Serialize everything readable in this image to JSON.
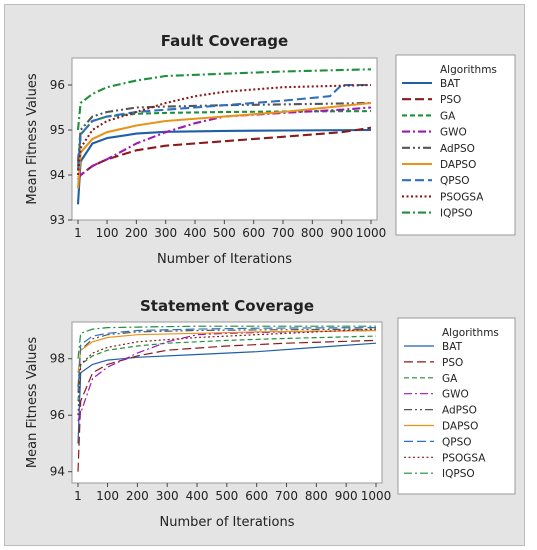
{
  "colors": {
    "BAT": "#1f5fa8",
    "PSO": "#8b1a1a",
    "GA": "#1e8f3a",
    "GWO": "#9b19b5",
    "AdPSO": "#555555",
    "DAPSO": "#e8941a",
    "QPSO": "#2d6fc2",
    "PSOGSA": "#8b1a1a",
    "IQPSO": "#1e8f3a"
  },
  "chart_data": [
    {
      "type": "line",
      "title": "Fault Coverage",
      "xlabel": "Number of Iterations",
      "ylabel": "Mean Fitness Values",
      "xlim": [
        1,
        1000
      ],
      "ylim": [
        93,
        96.6
      ],
      "xticks": [
        1,
        100,
        200,
        300,
        400,
        500,
        600,
        700,
        800,
        900,
        1000
      ],
      "yticks": [
        93,
        94,
        95,
        96
      ],
      "grid": false,
      "legend": {
        "title": "Algorithms",
        "placement": "right"
      },
      "series": [
        {
          "name": "BAT",
          "dash": "solid",
          "x": [
            1,
            10,
            50,
            100,
            200,
            300,
            500,
            700,
            1000
          ],
          "y": [
            93.35,
            94.3,
            94.7,
            94.82,
            94.92,
            94.96,
            94.98,
            94.99,
            95.0
          ]
        },
        {
          "name": "PSO",
          "dash": "longdash",
          "x": [
            1,
            10,
            50,
            100,
            200,
            300,
            500,
            700,
            900,
            1000
          ],
          "y": [
            93.9,
            94.0,
            94.2,
            94.35,
            94.55,
            94.65,
            94.75,
            94.85,
            94.95,
            95.05
          ]
        },
        {
          "name": "GA",
          "dash": "dash",
          "x": [
            1,
            10,
            50,
            100,
            200,
            300,
            500,
            700,
            1000
          ],
          "y": [
            94.2,
            94.9,
            95.2,
            95.3,
            95.36,
            95.38,
            95.4,
            95.41,
            95.42
          ]
        },
        {
          "name": "GWO",
          "dash": "dashdot",
          "x": [
            1,
            50,
            100,
            200,
            300,
            400,
            500,
            700,
            900,
            1000
          ],
          "y": [
            93.95,
            94.2,
            94.35,
            94.7,
            94.95,
            95.15,
            95.3,
            95.38,
            95.45,
            95.5
          ]
        },
        {
          "name": "AdPSO",
          "dash": "dashdotdot",
          "x": [
            1,
            10,
            50,
            100,
            200,
            300,
            500,
            700,
            1000
          ],
          "y": [
            94.3,
            95.0,
            95.3,
            95.4,
            95.5,
            95.52,
            95.55,
            95.57,
            95.6
          ]
        },
        {
          "name": "DAPSO",
          "dash": "solid",
          "x": [
            1,
            10,
            50,
            100,
            200,
            300,
            500,
            700,
            1000
          ],
          "y": [
            93.7,
            94.5,
            94.8,
            94.95,
            95.1,
            95.2,
            95.3,
            95.4,
            95.6
          ]
        },
        {
          "name": "QPSO",
          "dash": "longdash",
          "x": [
            1,
            10,
            50,
            100,
            200,
            300,
            500,
            700,
            860,
            900,
            1000
          ],
          "y": [
            94.1,
            94.9,
            95.2,
            95.3,
            95.4,
            95.45,
            95.55,
            95.65,
            95.75,
            96.0,
            96.0
          ]
        },
        {
          "name": "PSOGSA",
          "dash": "dot",
          "x": [
            1,
            10,
            50,
            100,
            200,
            300,
            400,
            500,
            700,
            1000
          ],
          "y": [
            94.0,
            94.6,
            95.0,
            95.2,
            95.4,
            95.6,
            95.75,
            95.85,
            95.95,
            96.0
          ]
        },
        {
          "name": "IQPSO",
          "dash": "dashdot",
          "x": [
            1,
            10,
            50,
            100,
            200,
            300,
            500,
            700,
            1000
          ],
          "y": [
            95.0,
            95.6,
            95.8,
            95.95,
            96.1,
            96.2,
            96.25,
            96.3,
            96.35
          ]
        }
      ]
    },
    {
      "type": "line",
      "title": "Statement Coverage",
      "xlabel": "Number of Iterations",
      "ylabel": "Mean Fitness Values",
      "xlim": [
        1,
        1000
      ],
      "ylim": [
        93.6,
        99.3
      ],
      "xticks": [
        1,
        100,
        200,
        300,
        400,
        500,
        600,
        700,
        800,
        900,
        1000
      ],
      "yticks": [
        94,
        96,
        98
      ],
      "grid": false,
      "legend": {
        "title": "Algorithms",
        "placement": "right"
      },
      "series": [
        {
          "name": "BAT",
          "dash": "solid",
          "x": [
            1,
            10,
            50,
            100,
            200,
            400,
            600,
            800,
            1000
          ],
          "y": [
            95.0,
            97.5,
            97.8,
            97.95,
            98.05,
            98.15,
            98.25,
            98.4,
            98.55
          ]
        },
        {
          "name": "PSO",
          "dash": "longdash",
          "x": [
            1,
            10,
            50,
            100,
            200,
            300,
            500,
            700,
            1000
          ],
          "y": [
            94.0,
            96.5,
            97.5,
            97.8,
            98.1,
            98.3,
            98.45,
            98.55,
            98.65
          ]
        },
        {
          "name": "GA",
          "dash": "dash",
          "x": [
            1,
            10,
            50,
            100,
            200,
            300,
            500,
            700,
            1000
          ],
          "y": [
            96.5,
            97.8,
            98.1,
            98.3,
            98.45,
            98.55,
            98.65,
            98.72,
            98.8
          ]
        },
        {
          "name": "GWO",
          "dash": "dashdot",
          "x": [
            1,
            50,
            100,
            200,
            300,
            400,
            500,
            700,
            1000
          ],
          "y": [
            95.8,
            97.3,
            97.7,
            98.2,
            98.6,
            98.85,
            98.9,
            98.95,
            99.0
          ]
        },
        {
          "name": "AdPSO",
          "dash": "dashdotdot",
          "x": [
            1,
            10,
            50,
            100,
            200,
            400,
            600,
            1000
          ],
          "y": [
            97.0,
            98.3,
            98.7,
            98.85,
            98.95,
            99.0,
            99.02,
            99.05
          ]
        },
        {
          "name": "DAPSO",
          "dash": "solid",
          "x": [
            1,
            10,
            50,
            100,
            200,
            400,
            600,
            1000
          ],
          "y": [
            97.5,
            98.3,
            98.6,
            98.75,
            98.85,
            98.9,
            98.95,
            99.0
          ]
        },
        {
          "name": "QPSO",
          "dash": "longdash",
          "x": [
            1,
            10,
            50,
            100,
            200,
            400,
            600,
            1000
          ],
          "y": [
            96.8,
            98.5,
            98.8,
            98.9,
            99.0,
            99.05,
            99.08,
            99.1
          ]
        },
        {
          "name": "PSOGSA",
          "dash": "dot",
          "x": [
            1,
            10,
            50,
            100,
            200,
            400,
            600,
            800,
            1000
          ],
          "y": [
            96.0,
            97.8,
            98.2,
            98.4,
            98.6,
            98.75,
            98.85,
            98.95,
            99.05
          ]
        },
        {
          "name": "IQPSO",
          "dash": "dashdot",
          "x": [
            1,
            10,
            50,
            100,
            200,
            400,
            600,
            1000
          ],
          "y": [
            98.0,
            98.9,
            99.05,
            99.1,
            99.12,
            99.15,
            99.15,
            99.15
          ]
        }
      ]
    }
  ]
}
